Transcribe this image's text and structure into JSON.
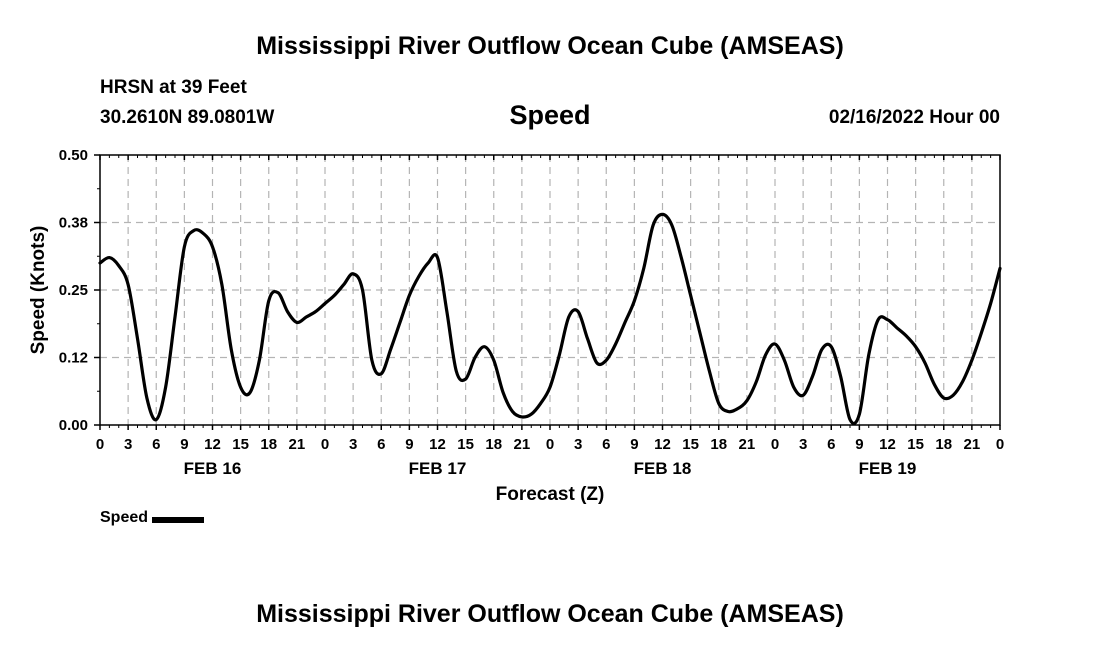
{
  "header": {
    "title": "Mississippi River Outflow Ocean Cube (AMSEAS)",
    "station": "HRSN at 39 Feet",
    "coords": "30.2610N  89.0801W",
    "variable": "Speed",
    "datetime": "02/16/2022 Hour 00"
  },
  "footer": {
    "title": "Mississippi River Outflow Ocean Cube (AMSEAS)"
  },
  "colors": {
    "line": "#000000",
    "grid": "#b4b4b4",
    "axis": "#000000"
  },
  "chart_data": {
    "type": "line",
    "xlabel": "Forecast (Z)",
    "ylabel": "Speed (Knots)",
    "ylim": [
      0,
      0.5
    ],
    "xlim": [
      0,
      96
    ],
    "y_ticks": [
      {
        "value": 0.0,
        "label": "0.00"
      },
      {
        "value": 0.125,
        "label": "0.12"
      },
      {
        "value": 0.25,
        "label": "0.25"
      },
      {
        "value": 0.375,
        "label": "0.38"
      },
      {
        "value": 0.5,
        "label": "0.50"
      }
    ],
    "x_ticks": [
      {
        "value": 0,
        "label": "0"
      },
      {
        "value": 3,
        "label": "3"
      },
      {
        "value": 6,
        "label": "6"
      },
      {
        "value": 9,
        "label": "9"
      },
      {
        "value": 12,
        "label": "12"
      },
      {
        "value": 15,
        "label": "15"
      },
      {
        "value": 18,
        "label": "18"
      },
      {
        "value": 21,
        "label": "21"
      },
      {
        "value": 24,
        "label": "0"
      },
      {
        "value": 27,
        "label": "3"
      },
      {
        "value": 30,
        "label": "6"
      },
      {
        "value": 33,
        "label": "9"
      },
      {
        "value": 36,
        "label": "12"
      },
      {
        "value": 39,
        "label": "15"
      },
      {
        "value": 42,
        "label": "18"
      },
      {
        "value": 45,
        "label": "21"
      },
      {
        "value": 48,
        "label": "0"
      },
      {
        "value": 51,
        "label": "3"
      },
      {
        "value": 54,
        "label": "6"
      },
      {
        "value": 57,
        "label": "9"
      },
      {
        "value": 60,
        "label": "12"
      },
      {
        "value": 63,
        "label": "15"
      },
      {
        "value": 66,
        "label": "18"
      },
      {
        "value": 69,
        "label": "21"
      },
      {
        "value": 72,
        "label": "0"
      },
      {
        "value": 75,
        "label": "3"
      },
      {
        "value": 78,
        "label": "6"
      },
      {
        "value": 81,
        "label": "9"
      },
      {
        "value": 84,
        "label": "12"
      },
      {
        "value": 87,
        "label": "15"
      },
      {
        "value": 90,
        "label": "18"
      },
      {
        "value": 93,
        "label": "21"
      },
      {
        "value": 96,
        "label": "0"
      }
    ],
    "date_labels": [
      {
        "value": 12,
        "label": "FEB 16"
      },
      {
        "value": 36,
        "label": "FEB 17"
      },
      {
        "value": 60,
        "label": "FEB 18"
      },
      {
        "value": 84,
        "label": "FEB 19"
      }
    ],
    "grid": true,
    "legend": {
      "position": "bottom-left",
      "label": "Speed"
    },
    "series": [
      {
        "name": "Speed",
        "x": [
          0,
          1,
          2,
          3,
          4,
          5,
          6,
          7,
          8,
          9,
          10,
          11,
          12,
          13,
          14,
          15,
          16,
          17,
          18,
          19,
          20,
          21,
          22,
          23,
          24,
          25,
          26,
          27,
          28,
          29,
          30,
          31,
          32,
          33,
          34,
          35,
          36,
          37,
          38,
          39,
          40,
          41,
          42,
          43,
          44,
          45,
          46,
          47,
          48,
          49,
          50,
          51,
          52,
          53,
          54,
          55,
          56,
          57,
          58,
          59,
          60,
          61,
          62,
          63,
          64,
          65,
          66,
          67,
          68,
          69,
          70,
          71,
          72,
          73,
          74,
          75,
          76,
          77,
          78,
          79,
          80,
          81,
          82,
          83,
          84,
          85,
          86,
          87,
          88,
          89,
          90,
          91,
          92,
          93,
          94,
          95,
          96
        ],
        "y": [
          0.3,
          0.31,
          0.295,
          0.26,
          0.16,
          0.05,
          0.01,
          0.07,
          0.2,
          0.33,
          0.36,
          0.355,
          0.33,
          0.26,
          0.14,
          0.07,
          0.06,
          0.12,
          0.23,
          0.245,
          0.21,
          0.19,
          0.2,
          0.21,
          0.225,
          0.24,
          0.26,
          0.28,
          0.25,
          0.12,
          0.095,
          0.14,
          0.19,
          0.24,
          0.275,
          0.3,
          0.31,
          0.21,
          0.1,
          0.085,
          0.125,
          0.145,
          0.12,
          0.06,
          0.025,
          0.015,
          0.02,
          0.04,
          0.07,
          0.13,
          0.2,
          0.21,
          0.16,
          0.115,
          0.12,
          0.15,
          0.19,
          0.23,
          0.29,
          0.37,
          0.39,
          0.37,
          0.31,
          0.24,
          0.17,
          0.1,
          0.04,
          0.025,
          0.03,
          0.045,
          0.08,
          0.13,
          0.15,
          0.12,
          0.07,
          0.055,
          0.09,
          0.14,
          0.145,
          0.09,
          0.01,
          0.02,
          0.13,
          0.195,
          0.195,
          0.18,
          0.165,
          0.145,
          0.115,
          0.075,
          0.05,
          0.055,
          0.08,
          0.12,
          0.17,
          0.225,
          0.29
        ]
      }
    ]
  }
}
